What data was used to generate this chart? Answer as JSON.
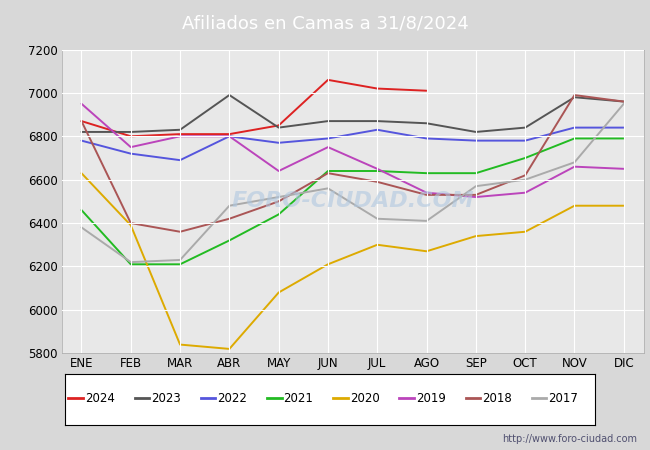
{
  "title": "Afiliados en Camas a 31/8/2024",
  "ylim": [
    5800,
    7200
  ],
  "yticks": [
    5800,
    6000,
    6200,
    6400,
    6600,
    6800,
    7000,
    7200
  ],
  "months": [
    "ENE",
    "FEB",
    "MAR",
    "ABR",
    "MAY",
    "JUN",
    "JUL",
    "AGO",
    "SEP",
    "OCT",
    "NOV",
    "DIC"
  ],
  "fig_bg_color": "#d8d8d8",
  "plot_bg_color": "#e8e8e8",
  "title_bg_color": "#5599dd",
  "watermark": "FORO-CIUDAD.COM",
  "url": "http://www.foro-ciudad.com",
  "series": {
    "2024": {
      "color": "#dd2222",
      "data": [
        6870,
        6800,
        6810,
        6810,
        6850,
        7060,
        7020,
        7010,
        null,
        null,
        null,
        null
      ]
    },
    "2023": {
      "color": "#555555",
      "data": [
        6820,
        6820,
        6830,
        6990,
        6840,
        6870,
        6870,
        6860,
        6820,
        6840,
        6980,
        6960
      ]
    },
    "2022": {
      "color": "#5555dd",
      "data": [
        6780,
        6720,
        6690,
        6800,
        6770,
        6790,
        6830,
        6790,
        6780,
        6780,
        6840,
        6840
      ]
    },
    "2021": {
      "color": "#22bb22",
      "data": [
        6460,
        6210,
        6210,
        6320,
        6440,
        6640,
        6640,
        6630,
        6630,
        6700,
        6790,
        6790
      ]
    },
    "2020": {
      "color": "#ddaa00",
      "data": [
        6630,
        6390,
        5840,
        5820,
        6080,
        6210,
        6300,
        6270,
        6340,
        6360,
        6480,
        6480
      ]
    },
    "2019": {
      "color": "#bb44bb",
      "data": [
        6950,
        6750,
        6800,
        6800,
        6640,
        6750,
        6650,
        6540,
        6520,
        6540,
        6660,
        6650
      ]
    },
    "2018": {
      "color": "#aa5555",
      "data": [
        6870,
        6400,
        6360,
        6420,
        6500,
        6630,
        6590,
        6530,
        6530,
        6620,
        6990,
        6960
      ]
    },
    "2017": {
      "color": "#aaaaaa",
      "data": [
        6380,
        6220,
        6230,
        6480,
        6520,
        6560,
        6420,
        6410,
        6570,
        6600,
        6680,
        6950
      ]
    }
  },
  "legend_order": [
    "2024",
    "2023",
    "2022",
    "2021",
    "2020",
    "2019",
    "2018",
    "2017"
  ]
}
